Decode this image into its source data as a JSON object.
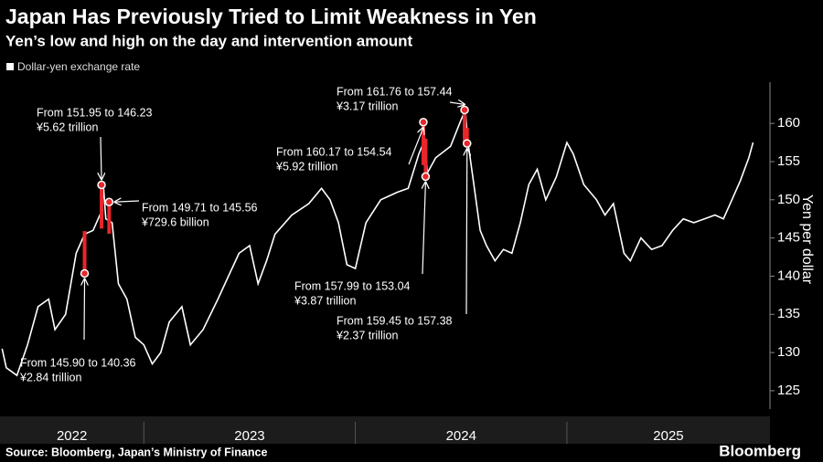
{
  "chart_data": {
    "type": "line",
    "title": "Japan Has Previously Tried to Limit Weakness in Yen",
    "subtitle": "Yen’s low and high on the day and intervention amount",
    "y_label": "Yen per dollar",
    "source": "Source: Bloomberg, Japan’s Ministry of Finance",
    "brand": "Bloomberg",
    "series": [
      {
        "name": "Dollar-yen exchange rate",
        "color": "#ffffff",
        "x": [
          2022.33,
          2022.35,
          2022.4,
          2022.45,
          2022.5,
          2022.55,
          2022.58,
          2022.63,
          2022.68,
          2022.72,
          2022.76,
          2022.8,
          2022.81,
          2022.82,
          2022.85,
          2022.88,
          2022.92,
          2022.96,
          2023.0,
          2023.04,
          2023.08,
          2023.12,
          2023.18,
          2023.22,
          2023.28,
          2023.35,
          2023.4,
          2023.45,
          2023.5,
          2023.54,
          2023.58,
          2023.62,
          2023.7,
          2023.78,
          2023.84,
          2023.88,
          2023.92,
          2023.96,
          2024.0,
          2024.05,
          2024.12,
          2024.2,
          2024.25,
          2024.3,
          2024.33,
          2024.34,
          2024.38,
          2024.45,
          2024.5,
          2024.52,
          2024.53,
          2024.56,
          2024.59,
          2024.62,
          2024.66,
          2024.7,
          2024.74,
          2024.78,
          2024.82,
          2024.86,
          2024.9,
          2024.95,
          2025.0,
          2025.03,
          2025.08,
          2025.14,
          2025.18,
          2025.22,
          2025.27,
          2025.3,
          2025.35,
          2025.4,
          2025.45,
          2025.5,
          2025.55,
          2025.6,
          2025.65,
          2025.7,
          2025.74,
          2025.78,
          2025.82,
          2025.86,
          2025.88
        ],
        "values": [
          130.5,
          128,
          127,
          131,
          136,
          137,
          133,
          135,
          143,
          145.5,
          146,
          148.5,
          151.5,
          147.5,
          147,
          139,
          137,
          132,
          131,
          128.5,
          130,
          134,
          136,
          131,
          133,
          137,
          140,
          143,
          144,
          139,
          142,
          145.5,
          148,
          149.5,
          151.5,
          150,
          147,
          141.5,
          141,
          147,
          150,
          151,
          151.5,
          156,
          158,
          153.5,
          155.5,
          157,
          160.5,
          161.7,
          158,
          152,
          146,
          144,
          142,
          143.5,
          143,
          147,
          152,
          154,
          150,
          153,
          157.5,
          156,
          152,
          150,
          148,
          149.5,
          143,
          142,
          145,
          143.5,
          144,
          146,
          147.5,
          147,
          147.5,
          148,
          147.5,
          150,
          152.5,
          155.5,
          157.5
        ]
      }
    ],
    "interventions": {
      "color": "#e8262b",
      "x": [
        2022.72,
        2022.8,
        2022.81,
        2024.33,
        2024.332,
        2024.525,
        2024.528
      ],
      "high": [
        145.9,
        151.95,
        149.71,
        160.17,
        157.99,
        161.76,
        159.45
      ],
      "low": [
        140.36,
        146.23,
        145.56,
        154.54,
        153.04,
        157.44,
        157.38
      ],
      "value_labels": [
        "From 145.90 to 140.36",
        "From 151.95 to 146.23",
        "From 149.71 to 145.56",
        "From 160.17 to 154.54",
        "From 157.99 to 153.04",
        "From 161.76 to 157.44",
        "From 159.45 to 157.38"
      ],
      "amounts": [
        "¥2.84 trillion",
        "¥5.62 trillion",
        "¥729.6 billion",
        "¥5.92 trillion",
        "¥3.87 trillion",
        "¥3.17 trillion",
        "¥2.37 trillion"
      ]
    },
    "xlim": [
      2022.32,
      2025.96
    ],
    "xticks": [
      2022,
      2023,
      2024,
      2025
    ],
    "ylim": [
      122.6,
      165.4
    ],
    "yticks": [
      125,
      130,
      135,
      140,
      145,
      150,
      155,
      160
    ],
    "grid": false
  }
}
